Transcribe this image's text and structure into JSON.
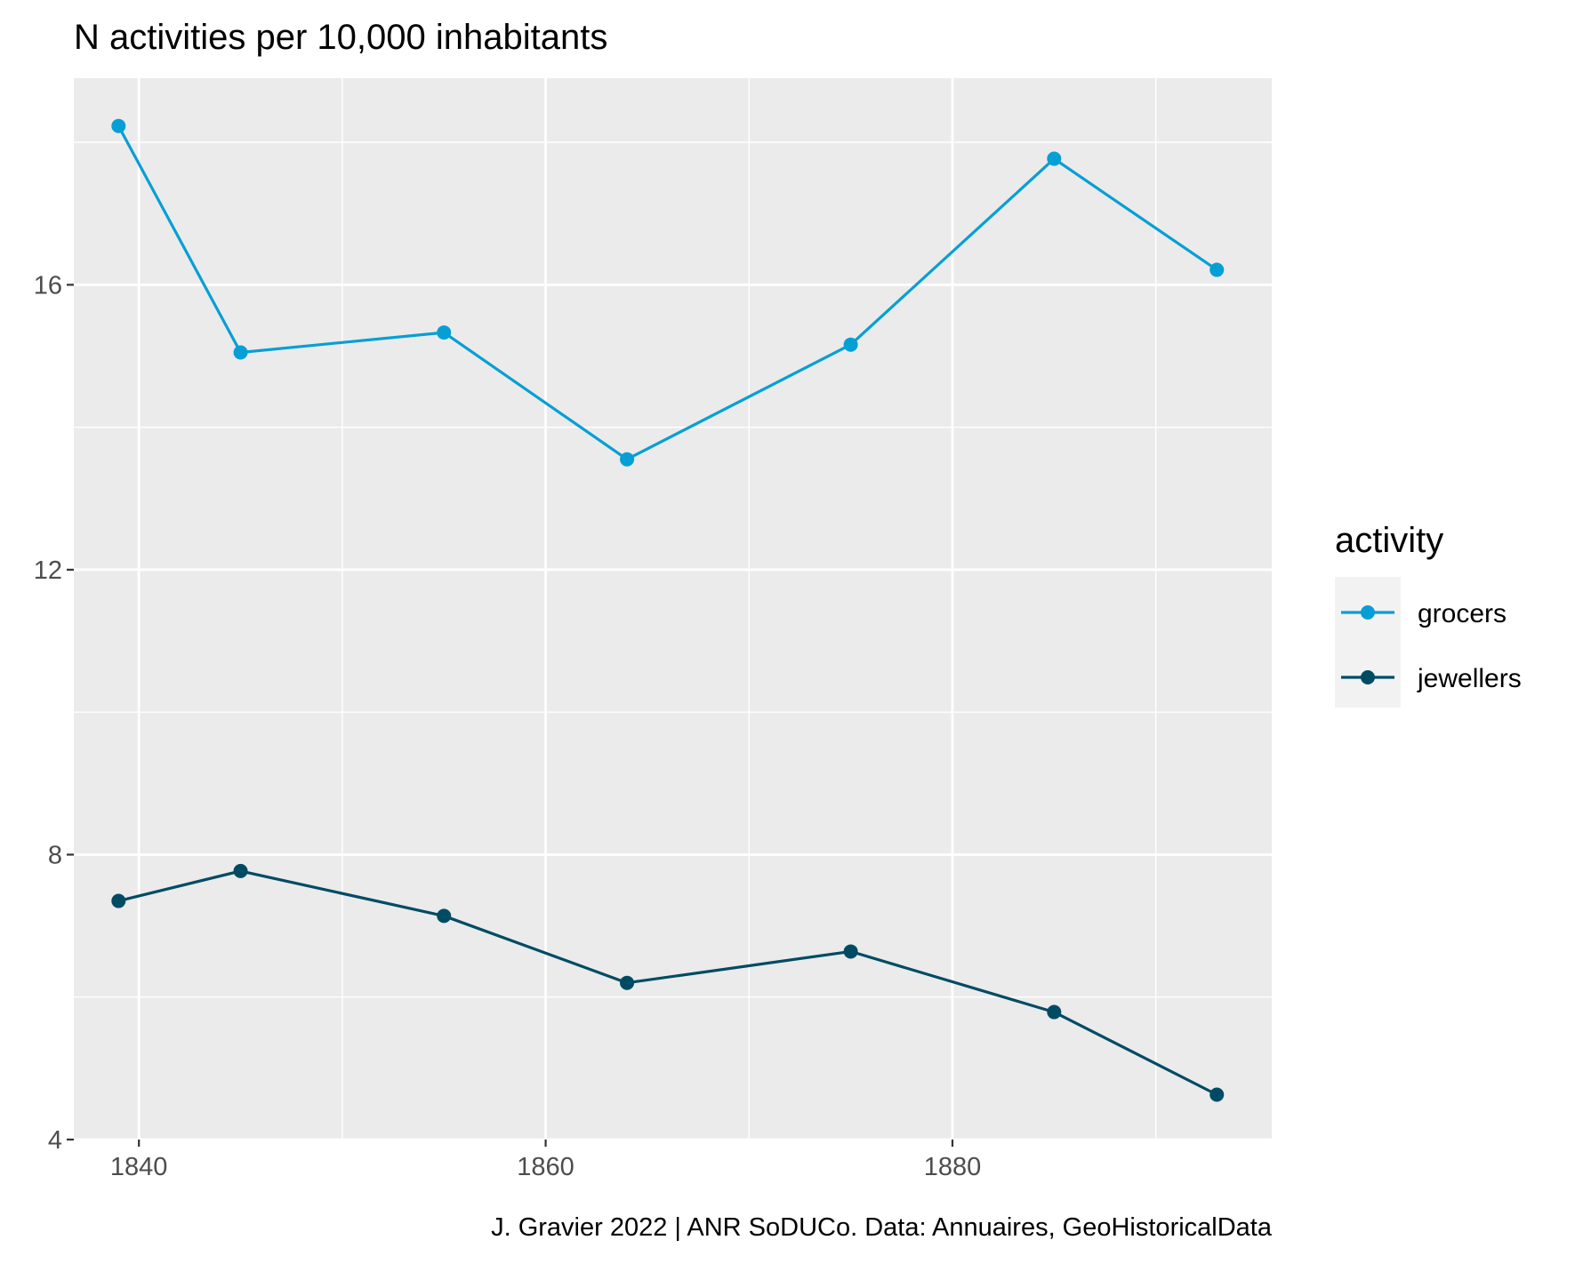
{
  "chart_data": {
    "type": "line",
    "title": "N activities per 10,000 inhabitants",
    "xlabel": "",
    "ylabel": "",
    "caption": "J. Gravier 2022 | ANR SoDUCo. Data: Annuaires, GeoHistoricalData",
    "xlim": [
      1836.8,
      1895.7
    ],
    "ylim": [
      4,
      18.9
    ],
    "x_ticks": [
      1840,
      1860,
      1880
    ],
    "y_ticks": [
      4,
      8,
      12,
      16
    ],
    "x_tick_labels": [
      "1840",
      "1860",
      "1880"
    ],
    "y_tick_labels": [
      "4",
      "8",
      "12",
      "16"
    ],
    "grid": true,
    "legend": {
      "title": "activity",
      "position": "right"
    },
    "x": [
      1839,
      1845,
      1855,
      1864,
      1875,
      1885,
      1893
    ],
    "series": [
      {
        "name": "grocers",
        "color": "#069FD5",
        "values": [
          18.23,
          15.05,
          15.33,
          13.55,
          15.16,
          17.77,
          16.21
        ]
      },
      {
        "name": "jewellers",
        "color": "#004B64",
        "values": [
          7.35,
          7.77,
          7.14,
          6.2,
          6.64,
          5.79,
          4.63
        ]
      }
    ]
  }
}
